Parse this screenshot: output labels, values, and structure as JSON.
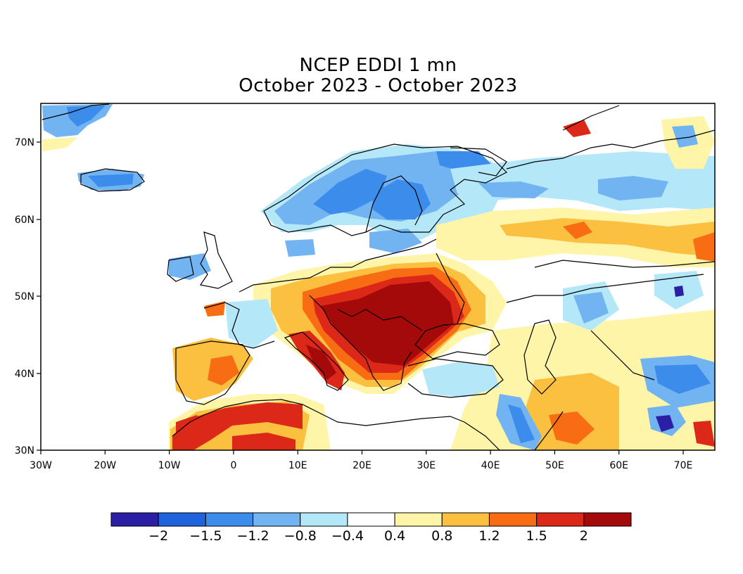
{
  "title": "NCEP EDDI 1 mn",
  "subtitle": "October 2023 - October 2023",
  "axes": {
    "lon_ticks": [
      "30W",
      "20W",
      "10W",
      "0",
      "10E",
      "20E",
      "30E",
      "40E",
      "50E",
      "60E",
      "70E"
    ],
    "lat_ticks": [
      "70N",
      "60N",
      "50N",
      "40N",
      "30N"
    ]
  },
  "colorbar": {
    "labels": [
      "-2",
      "-1.5",
      "-1.2",
      "-0.8",
      "-0.4",
      "0.4",
      "0.8",
      "1.2",
      "1.5",
      "2"
    ],
    "colors": [
      "#2b1fa6",
      "#1f63dc",
      "#3c8cec",
      "#72b3f2",
      "#b4e8f8",
      "#ffffff",
      "#fff5a8",
      "#fcc040",
      "#f86c14",
      "#dc2818",
      "#a40a0a"
    ]
  },
  "palette": {
    "ocean": "#ffffff",
    "land_neutral": "#ffffff"
  }
}
